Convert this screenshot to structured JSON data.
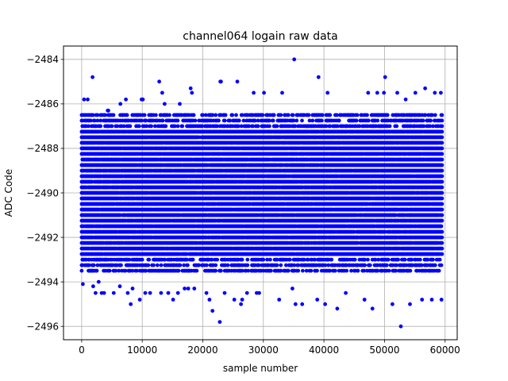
{
  "chart_data": {
    "type": "scatter",
    "title": "channel064 logain raw data",
    "xlabel": "sample number",
    "ylabel": "ADC Code",
    "xlim": [
      -3000,
      62000
    ],
    "ylim": [
      -2496.6,
      -2483.4
    ],
    "xticks": [
      0,
      10000,
      20000,
      30000,
      40000,
      50000,
      60000
    ],
    "xtick_labels": [
      "0",
      "10000",
      "20000",
      "30000",
      "40000",
      "50000",
      "60000"
    ],
    "yticks": [
      -2496,
      -2494,
      -2492,
      -2490,
      -2488,
      -2486,
      -2484
    ],
    "ytick_labels": [
      "−2496",
      "−2494",
      "−2492",
      "−2490",
      "−2488",
      "−2486",
      "−2484"
    ],
    "grid": true,
    "marker_color": "#0000ff",
    "series": [
      {
        "sample_range": [
          0,
          59500
        ],
        "typical_band": [
          -2493.5,
          -2486.5
        ],
        "x": [
          200,
          400,
          1000,
          1800,
          1900,
          2300,
          2800,
          3300,
          3700,
          4300,
          4400,
          5300,
          6300,
          6400,
          7300,
          7600,
          8100,
          8400,
          9600,
          9900,
          10100,
          10500,
          11300,
          12800,
          13100,
          13300,
          13700,
          14300,
          15100,
          15900,
          16200,
          17000,
          17600,
          18000,
          18200,
          18600,
          20600,
          21100,
          21600,
          22800,
          22900,
          23000,
          23600,
          25200,
          25700,
          26300,
          26500,
          27300,
          28400,
          28900,
          29300,
          30100,
          32600,
          33100,
          34800,
          35100,
          35300,
          36400,
          38900,
          39100,
          40200,
          40600,
          42200,
          43600,
          46700,
          47300,
          48000,
          48800,
          49900,
          50100,
          51300,
          52100,
          52700,
          53500,
          54200,
          55100,
          56200,
          56700,
          57800,
          58300,
          59300,
          59400
        ],
        "y": [
          -2494.1,
          -2485.8,
          -2485.8,
          -2484.8,
          -2494.2,
          -2494.5,
          -2494.0,
          -2494.5,
          -2494.5,
          -2486.3,
          -2486.3,
          -2494.5,
          -2494.2,
          -2486.0,
          -2485.8,
          -2494.5,
          -2495.0,
          -2494.3,
          -2494.8,
          -2485.8,
          -2485.8,
          -2494.5,
          -2494.5,
          -2485.0,
          -2494.5,
          -2485.5,
          -2486.0,
          -2494.5,
          -2494.8,
          -2494.5,
          -2486.0,
          -2494.3,
          -2494.3,
          -2485.3,
          -2485.5,
          -2494.3,
          -2494.5,
          -2494.8,
          -2495.3,
          -2495.8,
          -2485.0,
          -2485.0,
          -2494.5,
          -2494.8,
          -2485.0,
          -2495.0,
          -2494.8,
          -2494.5,
          -2485.5,
          -2494.5,
          -2494.5,
          -2485.5,
          -2494.8,
          -2485.5,
          -2494.3,
          -2484.0,
          -2495.0,
          -2495.0,
          -2494.8,
          -2484.8,
          -2495.0,
          -2485.5,
          -2495.2,
          -2494.5,
          -2494.8,
          -2485.5,
          -2495.2,
          -2485.5,
          -2485.5,
          -2484.8,
          -2495.0,
          -2485.5,
          -2496.0,
          -2485.8,
          -2495.0,
          -2485.5,
          -2494.8,
          -2485.3,
          -2494.8,
          -2485.5,
          -2485.5,
          -2494.8
        ]
      }
    ]
  }
}
